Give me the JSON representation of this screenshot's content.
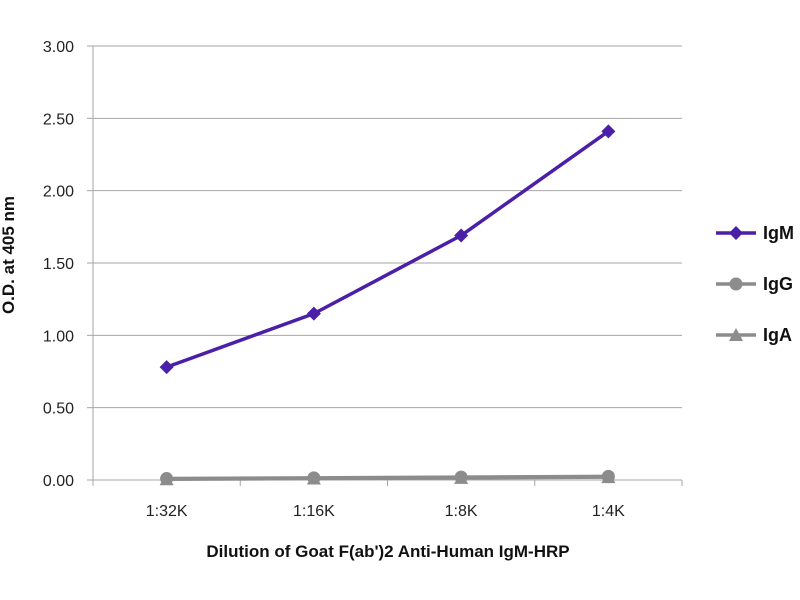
{
  "chart_data": {
    "type": "line",
    "categories": [
      "1:32K",
      "1:16K",
      "1:8K",
      "1:4K"
    ],
    "series": [
      {
        "name": "IgM",
        "values": [
          0.78,
          1.15,
          1.69,
          2.41
        ],
        "color": "#4b1fa8",
        "marker": "diamond"
      },
      {
        "name": "IgG",
        "values": [
          0.01,
          0.015,
          0.02,
          0.025
        ],
        "color": "#8c8c8c",
        "marker": "circle"
      },
      {
        "name": "IgA",
        "values": [
          0.005,
          0.01,
          0.015,
          0.02
        ],
        "color": "#8c8c8c",
        "marker": "triangle"
      }
    ],
    "yticks": [
      "0.00",
      "0.50",
      "1.00",
      "1.50",
      "2.00",
      "2.50",
      "3.00"
    ],
    "ylim": [
      0,
      3
    ],
    "xlabel": "Dilution of Goat F(ab')2 Anti-Human IgM-HRP",
    "ylabel": "O.D. at 405 nm",
    "grid": "horizontal",
    "legend": "right"
  }
}
